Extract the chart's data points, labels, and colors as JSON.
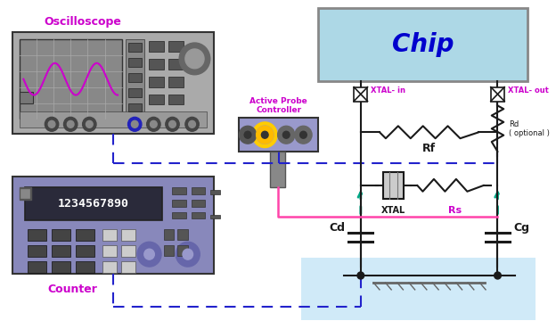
{
  "bg_color": "#ffffff",
  "chip_color": "#add8e6",
  "chip_text": "Chip",
  "chip_text_color": "#0000cd",
  "osc_label": "Oscilloscope",
  "counter_label": "Counter",
  "probe_label": "Active Probe\nController",
  "magenta": "#cc00cc",
  "pink": "#ff44aa",
  "cyan_arrow": "#00aa88",
  "dark": "#1a1a1a",
  "blue_dash": "#2222cc",
  "ground_bg": "#d0eaf8",
  "osc_gray": "#aaaaaa",
  "osc_dark": "#555555",
  "screen_bg": "#888888",
  "screen_grid": "#cccccc",
  "counter_purple": "#9090cc",
  "probe_purple": "#9999cc"
}
